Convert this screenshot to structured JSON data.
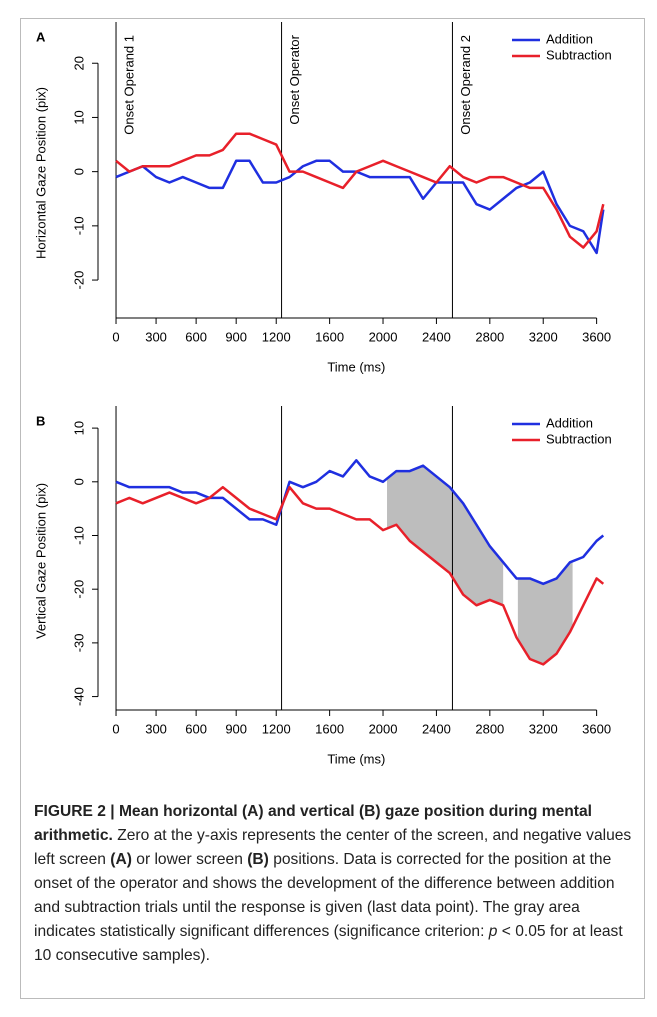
{
  "chart_data": [
    {
      "type": "line",
      "panel_label": "A",
      "ylabel": "Horizontal Gaze Position (pix)",
      "xlabel": "Time (ms)",
      "x": [
        0,
        100,
        200,
        300,
        400,
        500,
        600,
        700,
        800,
        900,
        1000,
        1100,
        1200,
        1300,
        1400,
        1500,
        1600,
        1700,
        1800,
        1900,
        2000,
        2100,
        2200,
        2300,
        2400,
        2500,
        2600,
        2700,
        2800,
        2900,
        3000,
        3100,
        3200,
        3300,
        3400,
        3500,
        3600,
        3650
      ],
      "series": [
        {
          "name": "Addition",
          "color": "#1f2fe0",
          "values": [
            -1,
            0,
            1,
            -1,
            -2,
            -1,
            -2,
            -3,
            -3,
            2,
            2,
            -2,
            -2,
            -1,
            1,
            2,
            2,
            0,
            0,
            -1,
            -1,
            -1,
            -1,
            -5,
            -2,
            -2,
            -2,
            -6,
            -7,
            -5,
            -3,
            -2,
            0,
            -6,
            -10,
            -11,
            -15,
            -7
          ]
        },
        {
          "name": "Subtraction",
          "color": "#e8202a",
          "values": [
            2,
            0,
            1,
            1,
            1,
            2,
            3,
            3,
            4,
            7,
            7,
            6,
            5,
            0,
            0,
            -1,
            -2,
            -3,
            0,
            1,
            2,
            1,
            0,
            -1,
            -2,
            1,
            -1,
            -2,
            -1,
            -1,
            -2,
            -3,
            -3,
            -7,
            -12,
            -14,
            -11,
            -6
          ]
        }
      ],
      "markers": [
        {
          "x": 0,
          "label": "Onset Operand 1"
        },
        {
          "x": 1240,
          "label": "Onset Operator"
        },
        {
          "x": 2520,
          "label": "Onset Operand 2"
        }
      ],
      "xlim": [
        -135,
        3850
      ],
      "ylim": [
        -27,
        26.5
      ],
      "xticks": [
        0,
        300,
        600,
        900,
        1200,
        1600,
        2000,
        2400,
        2800,
        3200,
        3600
      ],
      "yticks": [
        -20,
        -10,
        0,
        10,
        20
      ]
    },
    {
      "type": "line",
      "panel_label": "B",
      "ylabel": "Vertical Gaze Position (pix)",
      "xlabel": "Time (ms)",
      "x": [
        0,
        100,
        200,
        300,
        400,
        500,
        600,
        700,
        800,
        900,
        1000,
        1100,
        1200,
        1300,
        1400,
        1500,
        1600,
        1700,
        1800,
        1900,
        2000,
        2100,
        2200,
        2300,
        2400,
        2500,
        2600,
        2700,
        2800,
        2900,
        3000,
        3100,
        3200,
        3300,
        3400,
        3500,
        3600,
        3650
      ],
      "series": [
        {
          "name": "Addition",
          "color": "#1f2fe0",
          "values": [
            0,
            -1,
            -1,
            -1,
            -1,
            -2,
            -2,
            -3,
            -3,
            -5,
            -7,
            -7,
            -8,
            0,
            -1,
            0,
            2,
            1,
            4,
            1,
            0,
            2,
            2,
            3,
            1,
            -1,
            -4,
            -8,
            -12,
            -15,
            -18,
            -18,
            -19,
            -18,
            -15,
            -14,
            -11,
            -10
          ]
        },
        {
          "name": "Subtraction",
          "color": "#e8202a",
          "values": [
            -4,
            -3,
            -4,
            -3,
            -2,
            -3,
            -4,
            -3,
            -1,
            -3,
            -5,
            -6,
            -7,
            -1,
            -4,
            -5,
            -5,
            -6,
            -7,
            -7,
            -9,
            -8,
            -11,
            -13,
            -15,
            -17,
            -21,
            -23,
            -22,
            -23,
            -29,
            -33,
            -34,
            -32,
            -28,
            -23,
            -18,
            -19
          ]
        }
      ],
      "markers": [
        {
          "x": 0
        },
        {
          "x": 1240
        },
        {
          "x": 2520
        }
      ],
      "shaded_regions": [
        [
          2030,
          2900
        ],
        [
          3010,
          3420
        ]
      ],
      "shade_color": "#bdbdbd",
      "xlim": [
        -135,
        3850
      ],
      "ylim": [
        -42.5,
        13
      ],
      "xticks": [
        0,
        300,
        600,
        900,
        1200,
        1600,
        2000,
        2400,
        2800,
        3200,
        3600
      ],
      "yticks": [
        -40,
        -30,
        -20,
        -10,
        0,
        10
      ]
    }
  ],
  "caption": {
    "parts": [
      "FIGURE 2 | Mean horizontal (A) and vertical (B) gaze position during mental arithmetic.",
      " Zero at the y-axis represents the center of the screen, and negative values left screen ",
      "(A)",
      " or lower screen ",
      "(B)",
      " positions. Data is corrected for the position at the onset of the operator and shows the development of the difference between addition and subtraction trials until the response is given (last data point). The gray area indicates statistically significant differences (significance criterion: ",
      "p",
      " < 0.05 for at least 10 consecutive samples)."
    ]
  }
}
